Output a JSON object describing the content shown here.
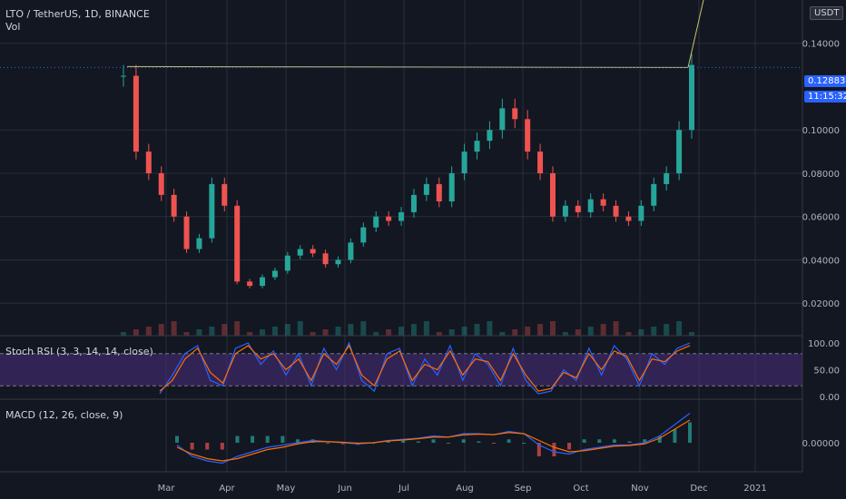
{
  "header": {
    "title": "LTO / TetherUS, 1D, BINANCE",
    "vol": "Vol",
    "currency": "USDT"
  },
  "price_badge": {
    "value": "0.12883",
    "countdown": "11:15:32"
  },
  "stoch": {
    "label": "Stoch RSI (3, 3, 14, 14, close)"
  },
  "macd": {
    "label": "MACD (12, 26, close, 9)"
  },
  "colors": {
    "up": "#26a69a",
    "down": "#ef5350",
    "k": "#2962ff",
    "d": "#ff6d00",
    "trend": "#c9c36a",
    "stoch_band": "#4a2d7e",
    "badge": "#2962ff"
  },
  "chart_data": [
    {
      "type": "line",
      "title": "LTO / TetherUS, 1D, BINANCE",
      "x_ticks": [
        "Mar",
        "Apr",
        "May",
        "Jun",
        "Jul",
        "Aug",
        "Sep",
        "Oct",
        "Nov",
        "Dec",
        "2021"
      ],
      "y_ticks": [
        "0.02000",
        "0.04000",
        "0.06000",
        "0.08000",
        "0.10000",
        "0.14000"
      ],
      "ylim": [
        0.005,
        0.16
      ],
      "series": [
        {
          "values": [
            0.125,
            0.09,
            0.08,
            0.07,
            0.06,
            0.045,
            0.05,
            0.075,
            0.065,
            0.03,
            0.028,
            0.032,
            0.035,
            0.042,
            0.045,
            0.043,
            0.038,
            0.04,
            0.048,
            0.055,
            0.06,
            0.058,
            0.062,
            0.07,
            0.075,
            0.067,
            0.08,
            0.09,
            0.095,
            0.1,
            0.11,
            0.105,
            0.09,
            0.08,
            0.06,
            0.065,
            0.062,
            0.068,
            0.065,
            0.06,
            0.058,
            0.065,
            0.075,
            0.08,
            0.1,
            0.13
          ]
        }
      ],
      "last_price": 0.12883
    },
    {
      "type": "line",
      "title": "Stoch RSI (3, 3, 14, 14, close)",
      "y_ticks": [
        "100.00",
        "50.00",
        "0.00"
      ],
      "ylim": [
        0,
        100
      ],
      "bands": [
        20,
        80
      ],
      "series": [
        {
          "values": [
            5,
            40,
            80,
            95,
            30,
            20,
            90,
            100,
            60,
            85,
            40,
            80,
            20,
            90,
            50,
            100,
            30,
            10,
            80,
            90,
            20,
            70,
            40,
            95,
            30,
            80,
            60,
            20,
            90,
            30,
            5,
            10,
            50,
            30,
            90,
            40,
            95,
            70,
            20,
            80,
            60,
            90,
            100
          ]
        },
        {
          "values": [
            10,
            30,
            70,
            90,
            45,
            25,
            80,
            95,
            70,
            80,
            50,
            70,
            30,
            80,
            60,
            95,
            40,
            20,
            70,
            85,
            30,
            60,
            50,
            85,
            40,
            70,
            65,
            30,
            80,
            40,
            10,
            15,
            45,
            35,
            80,
            50,
            85,
            75,
            30,
            70,
            65,
            85,
            95
          ]
        }
      ]
    },
    {
      "type": "line",
      "title": "MACD (12, 26, close, 9)",
      "y_ticks": [
        "0.00000"
      ],
      "ylim": [
        -0.012,
        0.016
      ],
      "series": [
        {
          "values": [
            -0.001,
            -0.006,
            -0.008,
            -0.009,
            -0.006,
            -0.004,
            -0.002,
            -0.001,
            0,
            0.001,
            0.0005,
            0,
            -0.0005,
            0,
            0.001,
            0.0015,
            0.002,
            0.003,
            0.0025,
            0.004,
            0.004,
            0.0035,
            0.005,
            0.004,
            -0.001,
            -0.004,
            -0.005,
            -0.003,
            -0.002,
            -0.001,
            -0.001,
            0,
            0.003,
            0.008,
            0.013
          ]
        },
        {
          "values": [
            -0.002,
            -0.005,
            -0.007,
            -0.008,
            -0.007,
            -0.005,
            -0.003,
            -0.002,
            -0.0005,
            0.0005,
            0.0005,
            0.0002,
            -0.0002,
            0,
            0.0008,
            0.0012,
            0.0018,
            0.0025,
            0.0025,
            0.0035,
            0.0038,
            0.0036,
            0.0045,
            0.004,
            0.001,
            -0.002,
            -0.004,
            -0.0035,
            -0.0025,
            -0.0015,
            -0.0012,
            -0.0005,
            0.002,
            0.006,
            0.01
          ]
        }
      ]
    }
  ]
}
